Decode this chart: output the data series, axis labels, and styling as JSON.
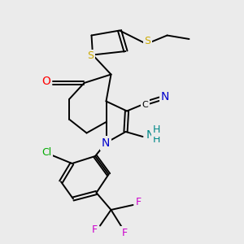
{
  "background_color": "#ebebeb",
  "colors": {
    "S": "#ccaa00",
    "N": "#0000cc",
    "O": "#ff0000",
    "Cl": "#00aa00",
    "F": "#cc00cc",
    "C": "#000000",
    "NH": "#008888"
  },
  "bond_lw": 1.4,
  "figsize": [
    3.0,
    3.0
  ],
  "dpi": 100
}
